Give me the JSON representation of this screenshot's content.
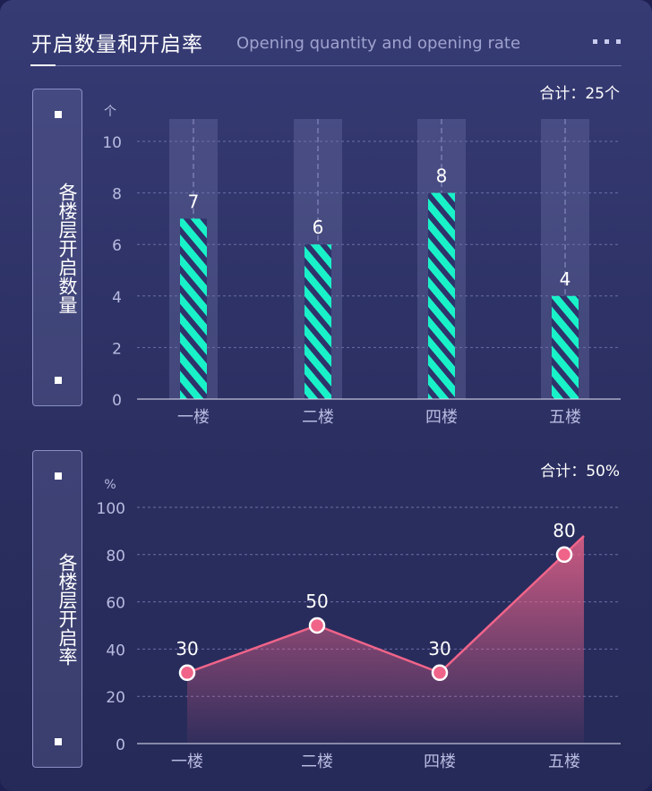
{
  "header": {
    "title": "开启数量和开启率",
    "subtitle": "Opening quantity and opening rate"
  },
  "colors": {
    "bar": "#19f2c8",
    "line": "#f0648a",
    "background": "#30356c"
  },
  "icons": {
    "more": "more-dots-icon"
  },
  "chart_data": [
    {
      "type": "bar",
      "side_label": "各楼层开启数量",
      "total": "合计：25个",
      "unit": "个",
      "categories": [
        "一楼",
        "二楼",
        "四楼",
        "五楼"
      ],
      "values": [
        7,
        6,
        8,
        4
      ],
      "ylim": [
        0,
        10
      ],
      "yticks": [
        0,
        2,
        4,
        6,
        8,
        10
      ],
      "grid": true
    },
    {
      "type": "area",
      "side_label": "各楼层开启率",
      "total": "合计：50%",
      "unit": "%",
      "categories": [
        "一楼",
        "二楼",
        "四楼",
        "五楼"
      ],
      "values": [
        30,
        50,
        30,
        80
      ],
      "ylim": [
        0,
        100
      ],
      "yticks": [
        0,
        20,
        40,
        60,
        80,
        100
      ],
      "grid": true
    }
  ]
}
